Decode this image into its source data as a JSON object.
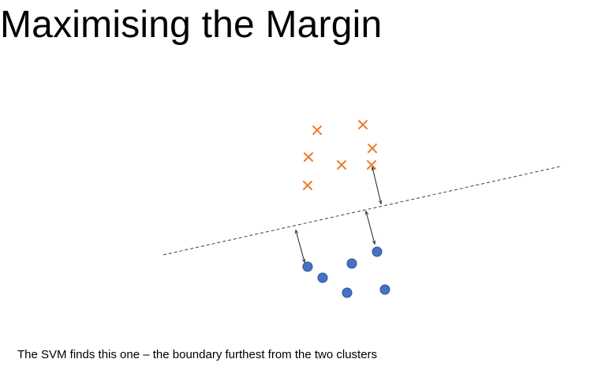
{
  "slide": {
    "title": "Maximising the Margin",
    "caption": "The SVM finds this one – the boundary furthest from the two clusters"
  },
  "colors": {
    "cross_class": "#ED7D31",
    "dot_class": "#4472C4",
    "dot_outline": "#2F5597",
    "boundary_line": "#404040",
    "margin_arrow": "#202020"
  },
  "icons": {
    "cross_marker": "cross-icon",
    "dot_marker": "dot-icon",
    "margin_arrow": "double-arrow-icon"
  }
}
